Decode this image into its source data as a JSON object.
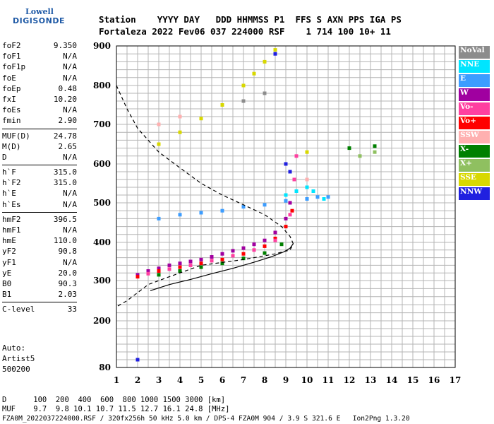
{
  "logo": {
    "line1": "Lowell",
    "line2": "DIGISONDE"
  },
  "header": {
    "line1": "Station    YYYY DAY   DDD HHMMSS P1  FFS S AXN PPS IGA PS",
    "line2": "Fortaleza 2022 Fev06 037 224000 RSF    1 714 100 10+ 11"
  },
  "params": {
    "group1": [
      [
        "foF2",
        "9.350"
      ],
      [
        "foF1",
        "N/A"
      ],
      [
        "foF1p",
        "N/A"
      ],
      [
        "foE",
        "N/A"
      ],
      [
        "foEp",
        "0.48"
      ],
      [
        "fxI",
        "10.20"
      ],
      [
        "foEs",
        "N/A"
      ],
      [
        "fmin",
        "2.90"
      ]
    ],
    "group2": [
      [
        "MUF(D)",
        "24.78"
      ],
      [
        "M(D)",
        "2.65"
      ],
      [
        "D",
        "N/A"
      ]
    ],
    "group3": [
      [
        "h`F",
        "315.0"
      ],
      [
        "h`F2",
        "315.0"
      ],
      [
        "h`E",
        "N/A"
      ],
      [
        "h`Es",
        "N/A"
      ]
    ],
    "group4": [
      [
        "hmF2",
        "396.5"
      ],
      [
        "hmF1",
        "N/A"
      ],
      [
        "hmE",
        "110.0"
      ],
      [
        "yF2",
        "90.8"
      ],
      [
        "yF1",
        "N/A"
      ],
      [
        "yE",
        "20.0"
      ],
      [
        "B0",
        "90.3"
      ],
      [
        "B1",
        "2.03"
      ]
    ],
    "group5": [
      [
        "C-level",
        "33"
      ]
    ]
  },
  "auto": {
    "line1": "Auto:",
    "line2": "Artist5",
    "line3": "500200"
  },
  "legend": [
    {
      "label": "NoVal",
      "color": "#8c8c8c"
    },
    {
      "label": "NNE",
      "color": "#00e5ff"
    },
    {
      "label": "E",
      "color": "#3d9dff"
    },
    {
      "label": "W",
      "color": "#a000a0"
    },
    {
      "label": "Vo-",
      "color": "#ff3fa0"
    },
    {
      "label": "Vo+",
      "color": "#ff0000"
    },
    {
      "label": "SSW",
      "color": "#ffb0b0"
    },
    {
      "label": "X-",
      "color": "#008000"
    },
    {
      "label": "X+",
      "color": "#8fc060"
    },
    {
      "label": "SSE",
      "color": "#d8d800"
    },
    {
      "label": "NNW",
      "color": "#2020e0"
    }
  ],
  "bottom": {
    "line1": "D      100  200  400  600  800 1000 1500 3000 [km]",
    "line2": "MUF    9.7  9.8 10.1 10.7 11.5 12.7 16.1 24.8 [MHz]",
    "line3": "FZA0M_2022037224000.RSF / 320fx256h 50 kHz 5.0 km / DPS-4 FZA0M 904 / 3.9 S 321.6 E   Ion2Png 1.3.20"
  },
  "chart_data": {
    "type": "scatter",
    "x_ticks": [
      1,
      2,
      3,
      4,
      5,
      6,
      7,
      8,
      9,
      10,
      11,
      12,
      13,
      14,
      15,
      16,
      17
    ],
    "y_ticks": [
      80,
      200,
      300,
      400,
      500,
      600,
      700,
      800,
      900
    ],
    "xlim": [
      1,
      17
    ],
    "ylim": [
      80,
      900
    ],
    "y_scale": "nonlinear",
    "grid": true,
    "series": [
      {
        "name": "W",
        "color": "#a000a0",
        "points": [
          [
            2.0,
            315
          ],
          [
            2.5,
            325
          ],
          [
            3,
            332
          ],
          [
            3.5,
            340
          ],
          [
            4,
            345
          ],
          [
            4.5,
            350
          ],
          [
            5,
            355
          ],
          [
            5.5,
            362
          ],
          [
            6,
            370
          ],
          [
            6.5,
            378
          ],
          [
            7,
            385
          ],
          [
            7.5,
            395
          ],
          [
            8,
            405
          ],
          [
            8.5,
            425
          ],
          [
            9,
            460
          ],
          [
            9.2,
            500
          ]
        ]
      },
      {
        "name": "Vo+",
        "color": "#ff0000",
        "points": [
          [
            2.0,
            310
          ],
          [
            3,
            325
          ],
          [
            4,
            335
          ],
          [
            5,
            345
          ],
          [
            6,
            355
          ],
          [
            7,
            370
          ],
          [
            8,
            390
          ],
          [
            8.5,
            410
          ],
          [
            9,
            440
          ],
          [
            9.3,
            480
          ]
        ]
      },
      {
        "name": "Vo-",
        "color": "#ff3fa0",
        "points": [
          [
            2.5,
            318
          ],
          [
            3.5,
            330
          ],
          [
            4.5,
            340
          ],
          [
            5.5,
            352
          ],
          [
            6.5,
            365
          ],
          [
            7.5,
            380
          ],
          [
            8.5,
            405
          ],
          [
            9.2,
            470
          ],
          [
            9.4,
            560
          ],
          [
            9.5,
            620
          ]
        ]
      },
      {
        "name": "X-",
        "color": "#008000",
        "points": [
          [
            3,
            315
          ],
          [
            4,
            325
          ],
          [
            5,
            335
          ],
          [
            6,
            345
          ],
          [
            7,
            358
          ],
          [
            8,
            372
          ],
          [
            8.8,
            395
          ],
          [
            12,
            640
          ],
          [
            13.2,
            645
          ]
        ]
      },
      {
        "name": "E",
        "color": "#3d9dff",
        "points": [
          [
            3,
            460
          ],
          [
            4,
            470
          ],
          [
            5,
            475
          ],
          [
            6,
            480
          ],
          [
            7,
            490
          ],
          [
            8,
            495
          ],
          [
            9,
            505
          ],
          [
            10,
            510
          ],
          [
            10.5,
            515
          ],
          [
            11,
            515
          ]
        ]
      },
      {
        "name": "NNE",
        "color": "#00e5ff",
        "points": [
          [
            9,
            520
          ],
          [
            9.5,
            530
          ],
          [
            10,
            540
          ],
          [
            10.3,
            530
          ],
          [
            10.8,
            510
          ]
        ]
      },
      {
        "name": "SSE",
        "color": "#d8d800",
        "points": [
          [
            3,
            650
          ],
          [
            4,
            680
          ],
          [
            5,
            715
          ],
          [
            6,
            750
          ],
          [
            7,
            800
          ],
          [
            7.5,
            830
          ],
          [
            8,
            860
          ],
          [
            8.5,
            890
          ],
          [
            10,
            630
          ]
        ]
      },
      {
        "name": "NNW",
        "color": "#2020e0",
        "points": [
          [
            2,
            100
          ],
          [
            8.5,
            880
          ],
          [
            9,
            600
          ],
          [
            9.2,
            580
          ]
        ]
      },
      {
        "name": "SSW",
        "color": "#ffb0b0",
        "points": [
          [
            3,
            700
          ],
          [
            4,
            720
          ],
          [
            10,
            560
          ]
        ]
      },
      {
        "name": "NoVal",
        "color": "#8c8c8c",
        "points": [
          [
            7,
            760
          ],
          [
            8,
            780
          ]
        ]
      },
      {
        "name": "X+",
        "color": "#8fc060",
        "points": [
          [
            12.5,
            620
          ],
          [
            13.2,
            630
          ]
        ]
      }
    ],
    "profile_solid": [
      [
        2.6,
        275
      ],
      [
        3.5,
        290
      ],
      [
        4.5,
        303
      ],
      [
        5.5,
        318
      ],
      [
        6.5,
        332
      ],
      [
        7.5,
        348
      ],
      [
        8.3,
        362
      ],
      [
        8.9,
        375
      ],
      [
        9.2,
        385
      ],
      [
        9.35,
        396.5
      ]
    ],
    "profile_dashed": [
      [
        1,
        800
      ],
      [
        1.5,
        740
      ],
      [
        2,
        690
      ],
      [
        3,
        630
      ],
      [
        4,
        590
      ],
      [
        5,
        550
      ],
      [
        6,
        520
      ],
      [
        7,
        495
      ],
      [
        8,
        470
      ],
      [
        8.8,
        440
      ],
      [
        9.2,
        415
      ],
      [
        9.35,
        396.5
      ],
      [
        9.2,
        380
      ],
      [
        8.5,
        370
      ],
      [
        7,
        355
      ],
      [
        5,
        340
      ],
      [
        3.5,
        310
      ],
      [
        2.5,
        290
      ],
      [
        1.5,
        250
      ],
      [
        1,
        235
      ]
    ]
  }
}
